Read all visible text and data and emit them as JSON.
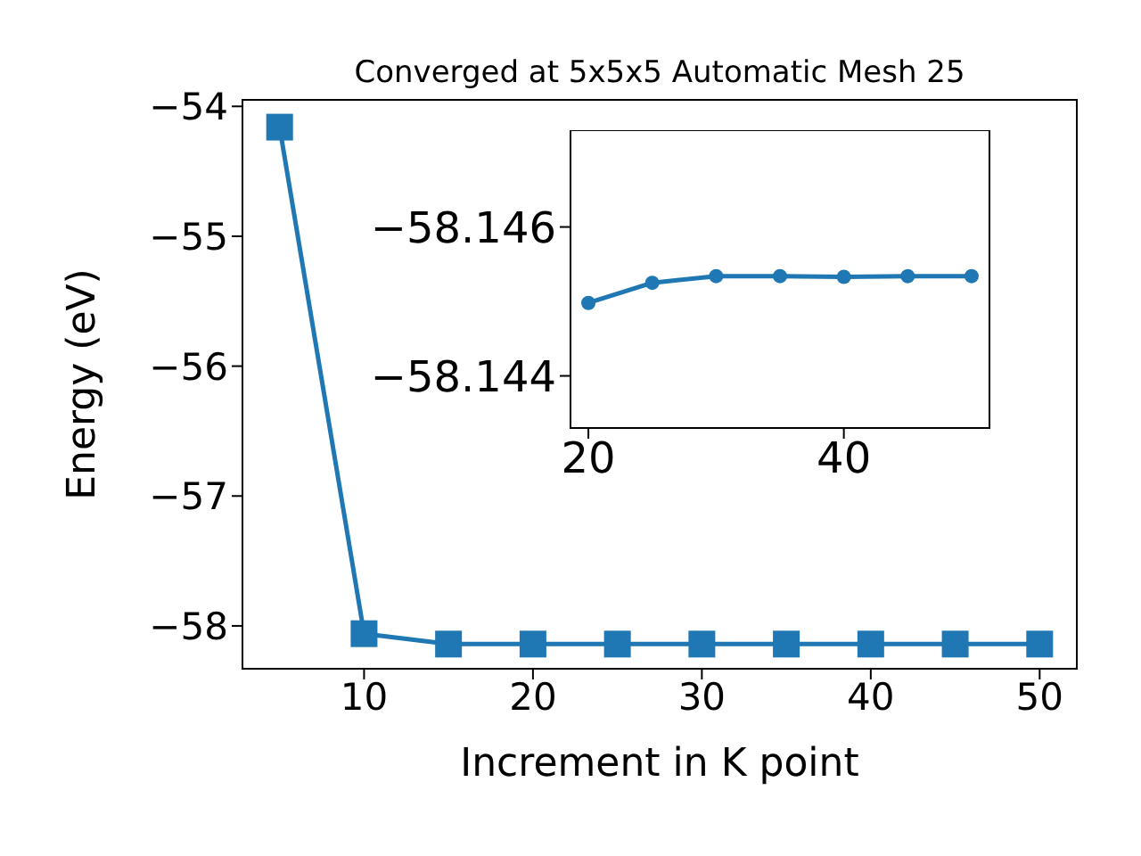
{
  "chart_data": [
    {
      "type": "line",
      "title": "Converged at 5x5x5 Automatic Mesh 25",
      "xlabel": "Increment in K point",
      "ylabel": "Energy (eV)",
      "x": [
        5,
        10,
        15,
        20,
        25,
        30,
        35,
        40,
        45,
        50
      ],
      "series": [
        {
          "color": "#1f77b4",
          "values": [
            -54.16,
            -58.06,
            -58.14,
            -58.14,
            -58.14,
            -58.14,
            -58.14,
            -58.14,
            -58.14,
            -58.14
          ]
        }
      ],
      "xlim": [
        2.8,
        52.2
      ],
      "xticks": [
        10,
        20,
        30,
        40,
        50
      ],
      "ylim": [
        -58.33,
        -53.95
      ],
      "yticks": [
        -58,
        -57,
        -56,
        -55,
        -54
      ],
      "marker": "square",
      "grid": false
    },
    {
      "type": "line",
      "x": [
        20,
        25,
        30,
        35,
        40,
        45,
        50
      ],
      "series": [
        {
          "color": "#1f77b4",
          "values": [
            -58.14498,
            -58.14525,
            -58.14534,
            -58.14534,
            -58.14533,
            -58.14534,
            -58.14534
          ]
        }
      ],
      "xlim": [
        18.6,
        51.4
      ],
      "xticks": [
        20,
        40
      ],
      "ylim": [
        -58.1433,
        -58.1473
      ],
      "yticks": [
        -58.146,
        -58.144
      ],
      "marker": "circle",
      "grid": false
    }
  ]
}
